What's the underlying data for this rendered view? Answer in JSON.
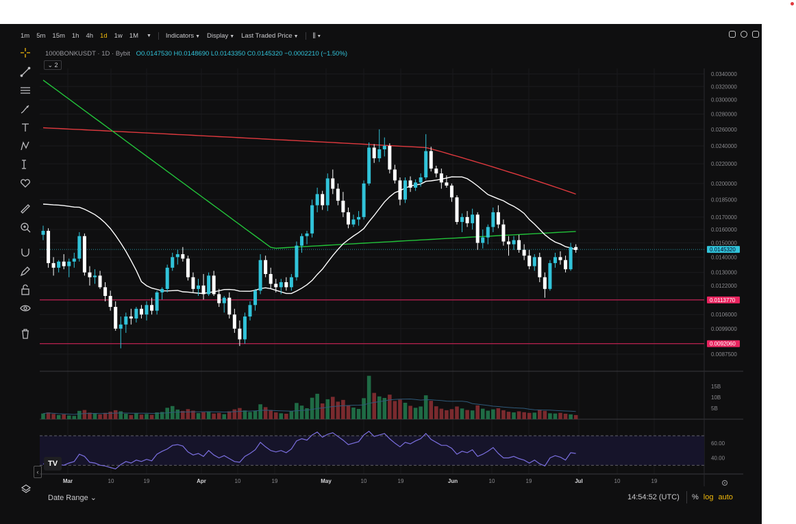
{
  "toolbar": {
    "timeframes": [
      {
        "label": "1m",
        "active": false
      },
      {
        "label": "5m",
        "active": false
      },
      {
        "label": "15m",
        "active": false
      },
      {
        "label": "1h",
        "active": false
      },
      {
        "label": "4h",
        "active": false
      },
      {
        "label": "1d",
        "active": true
      },
      {
        "label": "1w",
        "active": false
      },
      {
        "label": "1M",
        "active": false
      }
    ],
    "indicators_label": "Indicators",
    "display_label": "Display",
    "price_source_label": "Last Traded Price"
  },
  "legend": {
    "symbol": "1000BONKUSDT",
    "interval": "1D",
    "exchange": "Bybit",
    "ohlc": "O0.0147530 H0.0148690 L0.0143350 C0.0145320 −0.0002210 (−1.50%)",
    "collapse_count": "2"
  },
  "price_axis": {
    "ticks": [
      "0.0340000",
      "0.0320000",
      "0.0300000",
      "0.0280000",
      "0.0260000",
      "0.0240000",
      "0.0220000",
      "0.0200000",
      "0.0185000",
      "0.0170000",
      "0.0160000",
      "0.0150000",
      "0.0140000",
      "0.0130000",
      "0.0122000",
      "0.0114000",
      "0.0106000",
      "0.0099000",
      "0.0092000",
      "0.0087500"
    ],
    "current_price": "0.0145320",
    "level_upper": "0.0113770",
    "level_lower": "0.0092060"
  },
  "volume_axis": {
    "ticks": [
      "15B",
      "10B",
      "5B"
    ]
  },
  "rsi_axis": {
    "ticks": [
      "60.00",
      "40.00"
    ]
  },
  "time_axis": {
    "labels": [
      "Mar",
      "10",
      "19",
      "Apr",
      "10",
      "19",
      "May",
      "10",
      "19",
      "Jun",
      "10",
      "19",
      "Jul",
      "10",
      "19"
    ]
  },
  "footer": {
    "date_range": "Date Range",
    "time": "14:54:52 (UTC)",
    "percent": "%",
    "log": "log",
    "auto": "auto",
    "log_active": true,
    "auto_active": true
  },
  "colors": {
    "up": "#31c3d9",
    "down": "#ffffff",
    "ma_fast": "#ffffff",
    "ma_mid": "#22c33a",
    "ma_slow": "#e0393e",
    "level_line": "#e8245f",
    "rsi": "#7b6fe0",
    "accent": "#f0b90b"
  },
  "chart_data": {
    "type": "candlestick",
    "title": "1000BONKUSDT · 1D · Bybit",
    "y_scale": "log",
    "candles": [
      [
        0.0156,
        0.0163,
        0.0152,
        0.0159
      ],
      [
        0.0159,
        0.0161,
        0.0133,
        0.0136
      ],
      [
        0.0136,
        0.014,
        0.0128,
        0.0133
      ],
      [
        0.0133,
        0.0138,
        0.013,
        0.0137
      ],
      [
        0.0137,
        0.0142,
        0.0132,
        0.0134
      ],
      [
        0.0134,
        0.0139,
        0.0127,
        0.0137
      ],
      [
        0.0137,
        0.0143,
        0.0133,
        0.0139
      ],
      [
        0.0139,
        0.0158,
        0.0137,
        0.0155
      ],
      [
        0.0155,
        0.0157,
        0.0128,
        0.013
      ],
      [
        0.013,
        0.0134,
        0.0122,
        0.0127
      ],
      [
        0.0127,
        0.0132,
        0.0123,
        0.0128
      ],
      [
        0.0128,
        0.0131,
        0.012,
        0.0121
      ],
      [
        0.0121,
        0.0124,
        0.0113,
        0.0116
      ],
      [
        0.0116,
        0.0119,
        0.0108,
        0.011
      ],
      [
        0.011,
        0.0113,
        0.0098,
        0.0099
      ],
      [
        0.0099,
        0.0105,
        0.009,
        0.0101
      ],
      [
        0.0101,
        0.0107,
        0.0097,
        0.0105
      ],
      [
        0.0105,
        0.0109,
        0.0101,
        0.0104
      ],
      [
        0.0104,
        0.011,
        0.0102,
        0.0109
      ],
      [
        0.0109,
        0.0111,
        0.0104,
        0.0106
      ],
      [
        0.0106,
        0.0113,
        0.0103,
        0.0111
      ],
      [
        0.0111,
        0.0115,
        0.0106,
        0.0108
      ],
      [
        0.0108,
        0.0119,
        0.0106,
        0.0118
      ],
      [
        0.0118,
        0.0121,
        0.0114,
        0.012
      ],
      [
        0.012,
        0.0135,
        0.0118,
        0.0133
      ],
      [
        0.0133,
        0.0143,
        0.0131,
        0.014
      ],
      [
        0.014,
        0.0145,
        0.0135,
        0.0142
      ],
      [
        0.0142,
        0.0147,
        0.0137,
        0.0139
      ],
      [
        0.0139,
        0.0141,
        0.0125,
        0.0127
      ],
      [
        0.0127,
        0.013,
        0.0118,
        0.012
      ],
      [
        0.012,
        0.0126,
        0.0116,
        0.0122
      ],
      [
        0.0122,
        0.0129,
        0.0114,
        0.0117
      ],
      [
        0.0117,
        0.013,
        0.0116,
        0.0128
      ],
      [
        0.0128,
        0.0131,
        0.0116,
        0.0117
      ],
      [
        0.0117,
        0.012,
        0.011,
        0.0112
      ],
      [
        0.0112,
        0.0116,
        0.0107,
        0.0115
      ],
      [
        0.0115,
        0.0118,
        0.0104,
        0.0106
      ],
      [
        0.0106,
        0.0109,
        0.0097,
        0.0099
      ],
      [
        0.0099,
        0.0103,
        0.0091,
        0.0094
      ],
      [
        0.0094,
        0.0107,
        0.0092,
        0.0105
      ],
      [
        0.0105,
        0.0113,
        0.0103,
        0.0111
      ],
      [
        0.0111,
        0.012,
        0.0108,
        0.0119
      ],
      [
        0.0119,
        0.0142,
        0.0117,
        0.0138
      ],
      [
        0.0138,
        0.0141,
        0.0127,
        0.0129
      ],
      [
        0.0129,
        0.0133,
        0.012,
        0.0123
      ],
      [
        0.0123,
        0.0126,
        0.0118,
        0.0121
      ],
      [
        0.0121,
        0.0126,
        0.0117,
        0.0124
      ],
      [
        0.0124,
        0.0127,
        0.0119,
        0.0121
      ],
      [
        0.0121,
        0.0129,
        0.0119,
        0.0127
      ],
      [
        0.0127,
        0.0151,
        0.0125,
        0.0148
      ],
      [
        0.0148,
        0.0157,
        0.0143,
        0.0155
      ],
      [
        0.0155,
        0.0159,
        0.0149,
        0.0157
      ],
      [
        0.0157,
        0.0185,
        0.0154,
        0.018
      ],
      [
        0.018,
        0.0196,
        0.0174,
        0.019
      ],
      [
        0.019,
        0.0193,
        0.0176,
        0.018
      ],
      [
        0.018,
        0.021,
        0.0175,
        0.0205
      ],
      [
        0.0205,
        0.0214,
        0.019,
        0.0195
      ],
      [
        0.0195,
        0.02,
        0.018,
        0.0184
      ],
      [
        0.0184,
        0.0192,
        0.017,
        0.0174
      ],
      [
        0.0174,
        0.0178,
        0.0161,
        0.0164
      ],
      [
        0.0164,
        0.0172,
        0.0162,
        0.0168
      ],
      [
        0.0168,
        0.0175,
        0.0163,
        0.017
      ],
      [
        0.017,
        0.0203,
        0.0168,
        0.02
      ],
      [
        0.02,
        0.0244,
        0.0198,
        0.0238
      ],
      [
        0.0238,
        0.0242,
        0.0221,
        0.0226
      ],
      [
        0.0226,
        0.026,
        0.0222,
        0.0236
      ],
      [
        0.0236,
        0.025,
        0.0228,
        0.024
      ],
      [
        0.024,
        0.0243,
        0.021,
        0.0214
      ],
      [
        0.0214,
        0.0219,
        0.02,
        0.0203
      ],
      [
        0.0203,
        0.0206,
        0.018,
        0.0185
      ],
      [
        0.0185,
        0.0206,
        0.0182,
        0.0203
      ],
      [
        0.0203,
        0.0207,
        0.0192,
        0.0196
      ],
      [
        0.0196,
        0.0204,
        0.0193,
        0.0201
      ],
      [
        0.0201,
        0.021,
        0.0197,
        0.0206
      ],
      [
        0.0206,
        0.0254,
        0.0204,
        0.0234
      ],
      [
        0.0234,
        0.0239,
        0.0212,
        0.0215
      ],
      [
        0.0215,
        0.0218,
        0.0206,
        0.021
      ],
      [
        0.021,
        0.0215,
        0.0195,
        0.0201
      ],
      [
        0.0201,
        0.0208,
        0.0196,
        0.0198
      ],
      [
        0.0198,
        0.02,
        0.0183,
        0.0187
      ],
      [
        0.0187,
        0.0189,
        0.0164,
        0.0166
      ],
      [
        0.0166,
        0.0173,
        0.0158,
        0.017
      ],
      [
        0.017,
        0.0175,
        0.0162,
        0.0165
      ],
      [
        0.0165,
        0.0177,
        0.016,
        0.0172
      ],
      [
        0.0172,
        0.0174,
        0.0145,
        0.015
      ],
      [
        0.015,
        0.016,
        0.0146,
        0.0154
      ],
      [
        0.0154,
        0.0164,
        0.0149,
        0.0162
      ],
      [
        0.0162,
        0.0178,
        0.0158,
        0.0174
      ],
      [
        0.0174,
        0.018,
        0.0161,
        0.0164
      ],
      [
        0.0164,
        0.0168,
        0.0148,
        0.0151
      ],
      [
        0.0151,
        0.0155,
        0.0141,
        0.0149
      ],
      [
        0.0149,
        0.0155,
        0.0145,
        0.0152
      ],
      [
        0.0152,
        0.0156,
        0.0143,
        0.0145
      ],
      [
        0.0145,
        0.0149,
        0.0138,
        0.0141
      ],
      [
        0.0141,
        0.0145,
        0.0132,
        0.0134
      ],
      [
        0.0134,
        0.0142,
        0.0131,
        0.014
      ],
      [
        0.014,
        0.0143,
        0.0124,
        0.0127
      ],
      [
        0.0127,
        0.013,
        0.0115,
        0.012
      ],
      [
        0.012,
        0.0138,
        0.0119,
        0.0136
      ],
      [
        0.0136,
        0.0143,
        0.0133,
        0.014
      ],
      [
        0.014,
        0.0144,
        0.0135,
        0.0138
      ],
      [
        0.0138,
        0.0141,
        0.013,
        0.0132
      ],
      [
        0.0132,
        0.015,
        0.0131,
        0.0147
      ],
      [
        0.0147,
        0.0149,
        0.0143,
        0.0145
      ]
    ],
    "volume": [
      2.6,
      3.1,
      2.4,
      1.9,
      2.2,
      1.7,
      1.5,
      3.8,
      4.2,
      3.0,
      2.7,
      2.2,
      2.9,
      3.4,
      4.1,
      3.6,
      2.5,
      1.9,
      2.8,
      2.1,
      2.4,
      2.0,
      3.1,
      3.3,
      5.2,
      6.0,
      4.4,
      3.8,
      4.6,
      3.9,
      2.8,
      3.2,
      3.5,
      2.6,
      2.9,
      2.3,
      3.6,
      4.5,
      5.1,
      4.0,
      3.3,
      3.9,
      6.8,
      5.5,
      4.2,
      3.1,
      2.7,
      2.5,
      3.6,
      7.4,
      6.2,
      5.0,
      9.8,
      11.6,
      7.2,
      9.1,
      10.2,
      8.0,
      8.8,
      6.4,
      5.3,
      4.7,
      9.6,
      19.8,
      12.0,
      10.4,
      9.7,
      11.2,
      8.3,
      8.9,
      7.5,
      6.1,
      5.2,
      5.8,
      10.9,
      8.4,
      5.9,
      4.8,
      4.1,
      4.6,
      5.8,
      4.9,
      4.2,
      4.0,
      6.3,
      4.8,
      3.9,
      4.5,
      5.0,
      4.1,
      3.4,
      3.1,
      3.6,
      3.2,
      2.9,
      3.0,
      4.4,
      3.8,
      2.7,
      2.6,
      2.9,
      2.5,
      2.2,
      1.9
    ],
    "rsi": [
      32,
      30,
      28,
      31,
      30,
      33,
      35,
      45,
      42,
      34,
      33,
      30,
      29,
      27,
      25,
      31,
      35,
      33,
      37,
      35,
      38,
      36,
      45,
      49,
      52,
      57,
      58,
      56,
      48,
      44,
      46,
      42,
      50,
      44,
      40,
      43,
      39,
      35,
      34,
      42,
      46,
      51,
      61,
      55,
      50,
      48,
      50,
      47,
      52,
      63,
      66,
      64,
      71,
      75,
      68,
      72,
      74,
      69,
      64,
      58,
      60,
      62,
      71,
      76,
      69,
      71,
      73,
      66,
      60,
      55,
      61,
      59,
      63,
      66,
      73,
      65,
      61,
      57,
      57,
      53,
      45,
      49,
      47,
      51,
      42,
      45,
      49,
      54,
      46,
      40,
      40,
      42,
      39,
      37,
      33,
      37,
      32,
      29,
      40,
      43,
      41,
      37,
      47,
      46
    ]
  }
}
